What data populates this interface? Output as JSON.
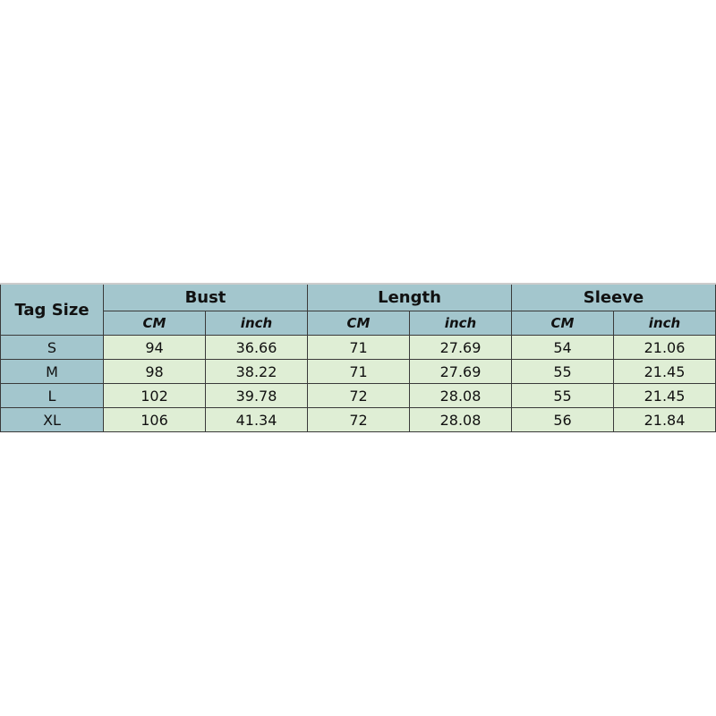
{
  "table": {
    "tag_header": "Tag Size",
    "groups": [
      "Bust",
      "Length",
      "Sleeve"
    ],
    "units": [
      "CM",
      "inch"
    ],
    "rows": [
      {
        "size": "S",
        "values": [
          "94",
          "36.66",
          "71",
          "27.69",
          "54",
          "21.06"
        ]
      },
      {
        "size": "M",
        "values": [
          "98",
          "38.22",
          "71",
          "27.69",
          "55",
          "21.45"
        ]
      },
      {
        "size": "L",
        "values": [
          "102",
          "39.78",
          "72",
          "28.08",
          "55",
          "21.45"
        ]
      },
      {
        "size": "XL",
        "values": [
          "106",
          "41.34",
          "72",
          "28.08",
          "56",
          "21.84"
        ]
      }
    ]
  },
  "colors": {
    "header": "#a3c6cd",
    "cell": "#dfeed5"
  }
}
